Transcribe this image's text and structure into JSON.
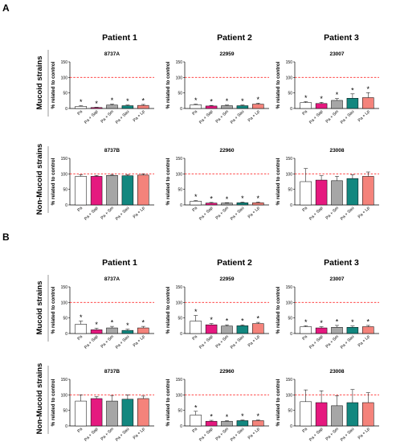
{
  "panels": [
    {
      "letter": "A",
      "patients": [
        "Patient 1",
        "Patient 2",
        "Patient 3"
      ],
      "row_labels": [
        "Mucoid strains",
        "Non-Mucoid strains"
      ]
    },
    {
      "letter": "B",
      "patients": [
        "Patient 1",
        "Patient 2",
        "Patient 3"
      ],
      "row_labels": [
        "Mucoid strains",
        "Non-Mucoid strains"
      ]
    }
  ],
  "colors": {
    "Pa": "#ffffff",
    "Pa + Sap": "#e5197f",
    "Pa + Sm": "#a6a6a6",
    "Pa + Sau": "#12877f",
    "Pa + Lp": "#f4837b",
    "reference_line": "#ff2a2a"
  },
  "chart_data": [
    {
      "type": "bar",
      "panel": "A",
      "title": "8737A",
      "ylabel": "% related to control",
      "ylim": [
        0,
        150
      ],
      "yticks": [
        0,
        50,
        100,
        150
      ],
      "reference_line": 100,
      "categories": [
        "Pa",
        "Pa + Sap",
        "Pa + Sm",
        "Pa + Sau",
        "Pa + Lp"
      ],
      "values": [
        7,
        3,
        11,
        9,
        10
      ],
      "errors": [
        2,
        1,
        3,
        2,
        3
      ],
      "significant": [
        true,
        true,
        true,
        true,
        true
      ]
    },
    {
      "type": "bar",
      "panel": "A",
      "title": "22959",
      "ylabel": "% related to control",
      "ylim": [
        0,
        150
      ],
      "yticks": [
        0,
        50,
        100,
        150
      ],
      "reference_line": 100,
      "categories": [
        "Pa",
        "Pa + Sap",
        "Pa + Sm",
        "Pa + Sau",
        "Pa + Lp"
      ],
      "values": [
        12,
        8,
        9,
        9,
        14
      ],
      "errors": [
        2,
        2,
        2,
        2,
        3
      ],
      "significant": [
        true,
        true,
        true,
        true,
        true
      ]
    },
    {
      "type": "bar",
      "panel": "A",
      "title": "23007",
      "ylabel": "% related to control",
      "ylim": [
        0,
        150
      ],
      "yticks": [
        0,
        50,
        100,
        150
      ],
      "reference_line": 100,
      "categories": [
        "Pa",
        "Pa + Sap",
        "Pa + Sm",
        "Pa + Sau",
        "Pa + Lp"
      ],
      "values": [
        19,
        16,
        26,
        33,
        35
      ],
      "errors": [
        3,
        4,
        6,
        14,
        16
      ],
      "significant": [
        true,
        true,
        true,
        true,
        true
      ]
    },
    {
      "type": "bar",
      "panel": "A",
      "title": "8737B",
      "ylabel": "% related to control",
      "ylim": [
        0,
        150
      ],
      "yticks": [
        0,
        50,
        100,
        150
      ],
      "reference_line": 100,
      "categories": [
        "Pa",
        "Pa + Sap",
        "Pa + Sm",
        "Pa + Sau",
        "Pa + Lp"
      ],
      "values": [
        92,
        92,
        95,
        94,
        96
      ],
      "errors": [
        5,
        3,
        3,
        3,
        3
      ],
      "significant": [
        false,
        false,
        false,
        false,
        false
      ]
    },
    {
      "type": "bar",
      "panel": "A",
      "title": "22960",
      "ylabel": "% related to control",
      "ylim": [
        0,
        150
      ],
      "yticks": [
        0,
        50,
        100,
        150
      ],
      "reference_line": 100,
      "categories": [
        "Pa",
        "Pa + Sap",
        "Pa + Sm",
        "Pa + Sau",
        "Pa + Lp"
      ],
      "values": [
        12,
        6,
        6,
        7,
        7
      ],
      "errors": [
        2,
        2,
        1,
        2,
        2
      ],
      "significant": [
        true,
        true,
        true,
        true,
        true
      ]
    },
    {
      "type": "bar",
      "panel": "A",
      "title": "23008",
      "ylabel": "% related to control",
      "ylim": [
        0,
        150
      ],
      "yticks": [
        0,
        50,
        100,
        150
      ],
      "reference_line": 100,
      "categories": [
        "Pa",
        "Pa + Sap",
        "Pa + Sm",
        "Pa + Sau",
        "Pa + Lp"
      ],
      "values": [
        75,
        80,
        78,
        85,
        92
      ],
      "errors": [
        42,
        14,
        14,
        12,
        14
      ],
      "significant": [
        false,
        false,
        false,
        false,
        false
      ]
    },
    {
      "type": "bar",
      "panel": "B",
      "title": "8737A",
      "ylabel": "% related to control",
      "ylim": [
        0,
        150
      ],
      "yticks": [
        0,
        50,
        100,
        150
      ],
      "reference_line": 100,
      "categories": [
        "Pa",
        "Pa + Sap",
        "Pa + Sm",
        "Pa + Sau",
        "Pa + Lp"
      ],
      "values": [
        30,
        12,
        18,
        10,
        18
      ],
      "errors": [
        10,
        5,
        5,
        4,
        5
      ],
      "significant": [
        true,
        true,
        true,
        true,
        true
      ]
    },
    {
      "type": "bar",
      "panel": "B",
      "title": "22959",
      "ylabel": "% related to control",
      "ylim": [
        0,
        150
      ],
      "yticks": [
        0,
        50,
        100,
        150
      ],
      "reference_line": 100,
      "categories": [
        "Pa",
        "Pa + Sap",
        "Pa + Sm",
        "Pa + Sau",
        "Pa + Lp"
      ],
      "values": [
        40,
        28,
        24,
        25,
        32
      ],
      "errors": [
        18,
        4,
        4,
        3,
        4
      ],
      "significant": [
        true,
        true,
        true,
        true,
        true
      ]
    },
    {
      "type": "bar",
      "panel": "B",
      "title": "23007",
      "ylabel": "% related to control",
      "ylim": [
        0,
        150
      ],
      "yticks": [
        0,
        50,
        100,
        150
      ],
      "reference_line": 100,
      "categories": [
        "Pa",
        "Pa + Sap",
        "Pa + Sm",
        "Pa + Sau",
        "Pa + Lp"
      ],
      "values": [
        22,
        18,
        20,
        20,
        22
      ],
      "errors": [
        3,
        4,
        6,
        4,
        4
      ],
      "significant": [
        true,
        true,
        true,
        true,
        true
      ]
    },
    {
      "type": "bar",
      "panel": "B",
      "title": "8737B",
      "ylabel": "% related to control",
      "ylim": [
        0,
        150
      ],
      "yticks": [
        0,
        50,
        100,
        150
      ],
      "reference_line": 100,
      "categories": [
        "Pa",
        "Pa + Sap",
        "Pa + Sm",
        "Pa + Sau",
        "Pa + Lp"
      ],
      "values": [
        80,
        88,
        80,
        86,
        88
      ],
      "errors": [
        20,
        6,
        18,
        14,
        8
      ],
      "significant": [
        false,
        false,
        false,
        false,
        false
      ]
    },
    {
      "type": "bar",
      "panel": "B",
      "title": "22960",
      "ylabel": "% related to control",
      "ylim": [
        0,
        150
      ],
      "yticks": [
        0,
        50,
        100,
        150
      ],
      "reference_line": 100,
      "categories": [
        "Pa",
        "Pa + Sap",
        "Pa + Sm",
        "Pa + Sau",
        "Pa + Lp"
      ],
      "values": [
        35,
        15,
        15,
        17,
        17
      ],
      "errors": [
        12,
        3,
        2,
        2,
        2
      ],
      "significant": [
        true,
        true,
        true,
        true,
        true
      ]
    },
    {
      "type": "bar",
      "panel": "B",
      "title": "23008",
      "ylabel": "% related to control",
      "ylim": [
        0,
        150
      ],
      "yticks": [
        0,
        50,
        100,
        150
      ],
      "reference_line": 100,
      "categories": [
        "Pa",
        "Pa + Sap",
        "Pa + Sm",
        "Pa + Sau",
        "Pa + Lp"
      ],
      "values": [
        78,
        75,
        65,
        75,
        75
      ],
      "errors": [
        38,
        38,
        32,
        42,
        32
      ],
      "significant": [
        false,
        false,
        false,
        false,
        false
      ]
    }
  ]
}
